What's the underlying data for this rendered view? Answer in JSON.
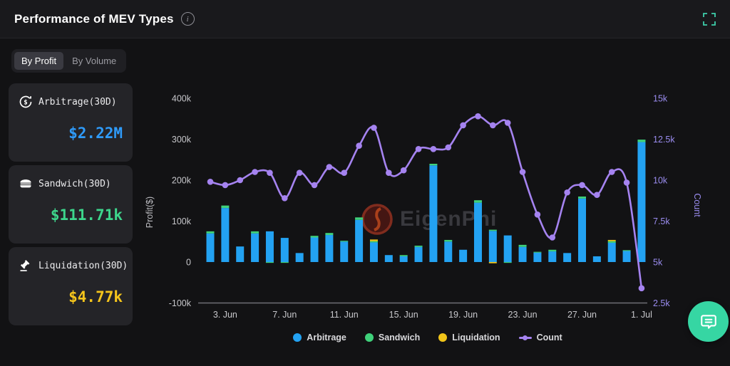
{
  "header": {
    "title": "Performance of MEV Types",
    "info_icon": "info",
    "expand_icon": "fullscreen-expand"
  },
  "tabs": [
    {
      "label": "By Profit",
      "active": true
    },
    {
      "label": "By Volume",
      "active": false
    }
  ],
  "cards": [
    {
      "icon": "coin-dollar-icon",
      "label": "Arbitrage(30D)",
      "value": "$2.22M",
      "color": "#2f9bfa"
    },
    {
      "icon": "sandwich-icon",
      "label": "Sandwich(30D)",
      "value": "$111.71k",
      "color": "#3dd68c"
    },
    {
      "icon": "gavel-icon",
      "label": "Liquidation(30D)",
      "value": "$4.77k",
      "color": "#f5c51c"
    }
  ],
  "watermark": {
    "text": "EigenPhi"
  },
  "chat_button": {
    "icon": "chat-bubble-icon",
    "color": "#36d6a3"
  },
  "chart_data": {
    "type": "bar+line",
    "title": "Performance of MEV Types",
    "categories": [
      "2. Jun",
      "3. Jun",
      "4. Jun",
      "5. Jun",
      "6. Jun",
      "7. Jun",
      "8. Jun",
      "9. Jun",
      "10. Jun",
      "11. Jun",
      "12. Jun",
      "13. Jun",
      "14. Jun",
      "15. Jun",
      "16. Jun",
      "17. Jun",
      "18. Jun",
      "19. Jun",
      "20. Jun",
      "21. Jun",
      "22. Jun",
      "23. Jun",
      "24. Jun",
      "25. Jun",
      "26. Jun",
      "27. Jun",
      "28. Jun",
      "29. Jun",
      "30. Jun",
      "1. Jul"
    ],
    "x_tick_labels": [
      "3. Jun",
      "7. Jun",
      "11. Jun",
      "15. Jun",
      "19. Jun",
      "23. Jun",
      "27. Jun",
      "1. Jul"
    ],
    "x_tick_indices": [
      1,
      5,
      9,
      13,
      17,
      21,
      25,
      29
    ],
    "left_axis": {
      "label": "Profit($)",
      "ticks": [
        "400k",
        "300k",
        "200k",
        "100k",
        "0",
        "-100k"
      ],
      "tick_values": [
        400,
        300,
        200,
        100,
        0,
        -100
      ],
      "range_k": [
        -100,
        400
      ]
    },
    "right_axis": {
      "label": "Count",
      "ticks": [
        "15k",
        "12.5k",
        "10k",
        "7.5k",
        "5k",
        "2.5k"
      ],
      "tick_values": [
        15,
        12.5,
        10,
        7.5,
        5,
        2.5
      ],
      "range_k": [
        2.5,
        15
      ]
    },
    "grid": false,
    "legend_position": "bottom",
    "series": [
      {
        "name": "Arbitrage",
        "type": "bar",
        "stack": true,
        "color": "#23a2f2",
        "unit": "k$",
        "values": [
          70,
          132,
          38,
          70,
          75,
          59,
          22,
          60,
          66,
          50,
          103,
          48,
          17,
          14,
          37,
          236,
          50,
          30,
          145,
          76,
          65,
          37,
          23,
          26,
          22,
          155,
          14,
          47,
          27,
          293
        ]
      },
      {
        "name": "Sandwich",
        "type": "bar",
        "stack": true,
        "color": "#3fd17a",
        "unit": "k$",
        "values": [
          5,
          6,
          0,
          5,
          -2,
          -2,
          0,
          4,
          5,
          2,
          6,
          3,
          0,
          3,
          3,
          4,
          4,
          0,
          6,
          3,
          -2,
          5,
          2,
          4,
          0,
          5,
          0,
          4,
          2,
          6
        ]
      },
      {
        "name": "Liquidation",
        "type": "bar",
        "stack": true,
        "color": "#f0c419",
        "unit": "k$",
        "values": [
          0,
          0,
          0,
          0,
          0,
          0,
          0,
          0,
          0,
          0,
          0,
          4,
          0,
          0,
          0,
          0,
          0,
          0,
          0,
          -3,
          0,
          0,
          0,
          0,
          0,
          0,
          0,
          3,
          0,
          0
        ]
      },
      {
        "name": "Count",
        "type": "line",
        "axis": "right",
        "color": "#a583f0",
        "unit": "k",
        "values": [
          9.9,
          9.7,
          10.0,
          10.5,
          10.45,
          8.9,
          10.45,
          9.7,
          10.8,
          10.45,
          12.1,
          13.2,
          10.45,
          10.6,
          11.9,
          11.9,
          12.0,
          13.35,
          13.9,
          13.35,
          13.5,
          10.5,
          7.9,
          6.5,
          9.25,
          9.7,
          9.1,
          10.5,
          9.85,
          3.4
        ]
      }
    ],
    "legend": [
      {
        "label": "Arbitrage",
        "color": "#23a2f2",
        "marker": "dot"
      },
      {
        "label": "Sandwich",
        "color": "#3fd17a",
        "marker": "dot"
      },
      {
        "label": "Liquidation",
        "color": "#f0c419",
        "marker": "dot"
      },
      {
        "label": "Count",
        "color": "#a583f0",
        "marker": "line-dot"
      }
    ]
  }
}
